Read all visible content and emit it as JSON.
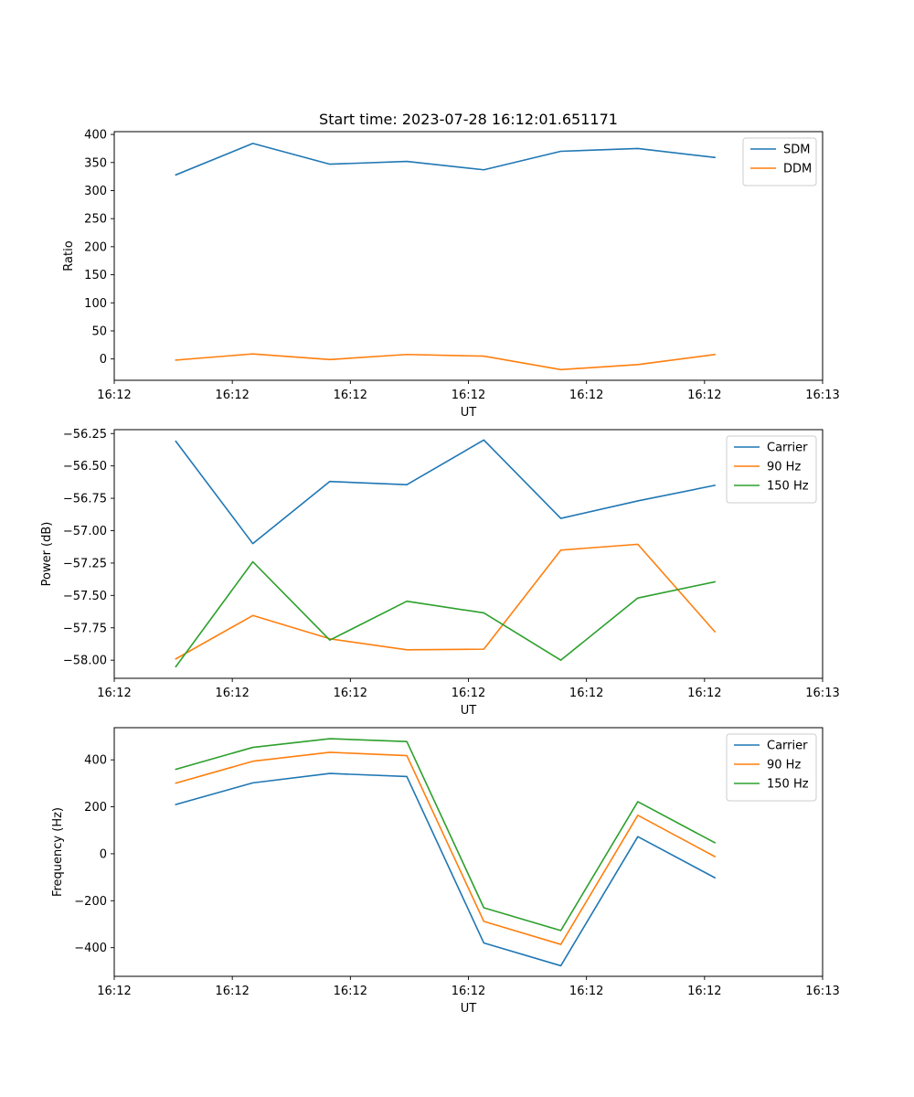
{
  "figure_title": "Start time: 2023-07-28 16:12:01.651171",
  "colors": {
    "blue": "#1f77b4",
    "orange": "#ff7f0e",
    "green": "#2ca02c"
  },
  "chart_data": [
    {
      "type": "line",
      "xlabel": "UT",
      "ylabel": "Ratio",
      "x": [
        1,
        2,
        3,
        4,
        5,
        6,
        7,
        8
      ],
      "xlim": [
        0.2,
        9.4
      ],
      "x_ticks": [
        0.2,
        1.7333,
        3.2667,
        4.8,
        6.3333,
        7.8667,
        9.4
      ],
      "x_tick_labels": [
        "16:12",
        "16:12",
        "16:12",
        "16:12",
        "16:12",
        "16:12",
        "16:13"
      ],
      "ylim": [
        -38,
        405
      ],
      "y_ticks": [
        0,
        50,
        100,
        150,
        200,
        250,
        300,
        350,
        400
      ],
      "y_tick_labels": [
        "0",
        "50",
        "100",
        "150",
        "200",
        "250",
        "300",
        "350",
        "400"
      ],
      "legend_position": "upper right",
      "series": [
        {
          "name": "SDM",
          "color": "#1f77b4",
          "values": [
            328,
            384,
            347,
            352,
            337,
            370,
            375,
            359
          ]
        },
        {
          "name": "DDM",
          "color": "#ff7f0e",
          "values": [
            -2,
            9,
            -1,
            8,
            5,
            -19,
            -10,
            8
          ]
        }
      ]
    },
    {
      "type": "line",
      "xlabel": "UT",
      "ylabel": "Power (dB)",
      "x": [
        1,
        2,
        3,
        4,
        5,
        6,
        7,
        8
      ],
      "xlim": [
        0.2,
        9.4
      ],
      "x_ticks": [
        0.2,
        1.7333,
        3.2667,
        4.8,
        6.3333,
        7.8667,
        9.4
      ],
      "x_tick_labels": [
        "16:12",
        "16:12",
        "16:12",
        "16:12",
        "16:12",
        "16:12",
        "16:13"
      ],
      "ylim": [
        -58.14,
        -56.22
      ],
      "y_ticks": [
        -58.0,
        -57.75,
        -57.5,
        -57.25,
        -57.0,
        -56.75,
        -56.5,
        -56.25
      ],
      "y_tick_labels": [
        "−58.00",
        "−57.75",
        "−57.50",
        "−57.25",
        "−57.00",
        "−56.75",
        "−56.50",
        "−56.25"
      ],
      "legend_position": "upper right",
      "series": [
        {
          "name": "Carrier",
          "color": "#1f77b4",
          "values": [
            -56.31,
            -57.1,
            -56.62,
            -56.645,
            -56.3,
            -56.905,
            -56.77,
            -56.65
          ]
        },
        {
          "name": "90 Hz",
          "color": "#ff7f0e",
          "values": [
            -57.99,
            -57.655,
            -57.835,
            -57.92,
            -57.915,
            -57.15,
            -57.105,
            -57.78
          ]
        },
        {
          "name": "150 Hz",
          "color": "#2ca02c",
          "values": [
            -58.05,
            -57.24,
            -57.845,
            -57.545,
            -57.635,
            -58.0,
            -57.52,
            -57.395
          ]
        }
      ]
    },
    {
      "type": "line",
      "xlabel": "UT",
      "ylabel": "Frequency (Hz)",
      "x": [
        1,
        2,
        3,
        4,
        5,
        6,
        7,
        8
      ],
      "xlim": [
        0.2,
        9.4
      ],
      "x_ticks": [
        0.2,
        1.7333,
        3.2667,
        4.8,
        6.3333,
        7.8667,
        9.4
      ],
      "x_tick_labels": [
        "16:12",
        "16:12",
        "16:12",
        "16:12",
        "16:12",
        "16:12",
        "16:13"
      ],
      "ylim": [
        -522,
        537
      ],
      "y_ticks": [
        -400,
        -200,
        0,
        200,
        400
      ],
      "y_tick_labels": [
        "−400",
        "−200",
        "0",
        "200",
        "400"
      ],
      "legend_position": "upper right",
      "series": [
        {
          "name": "Carrier",
          "color": "#1f77b4",
          "values": [
            210,
            302,
            342,
            329,
            -380,
            -477,
            73,
            -102
          ]
        },
        {
          "name": "90 Hz",
          "color": "#ff7f0e",
          "values": [
            301,
            394,
            432,
            418,
            -288,
            -386,
            164,
            -12
          ]
        },
        {
          "name": "150 Hz",
          "color": "#2ca02c",
          "values": [
            360,
            453,
            490,
            478,
            -230,
            -327,
            222,
            47
          ]
        }
      ]
    }
  ]
}
